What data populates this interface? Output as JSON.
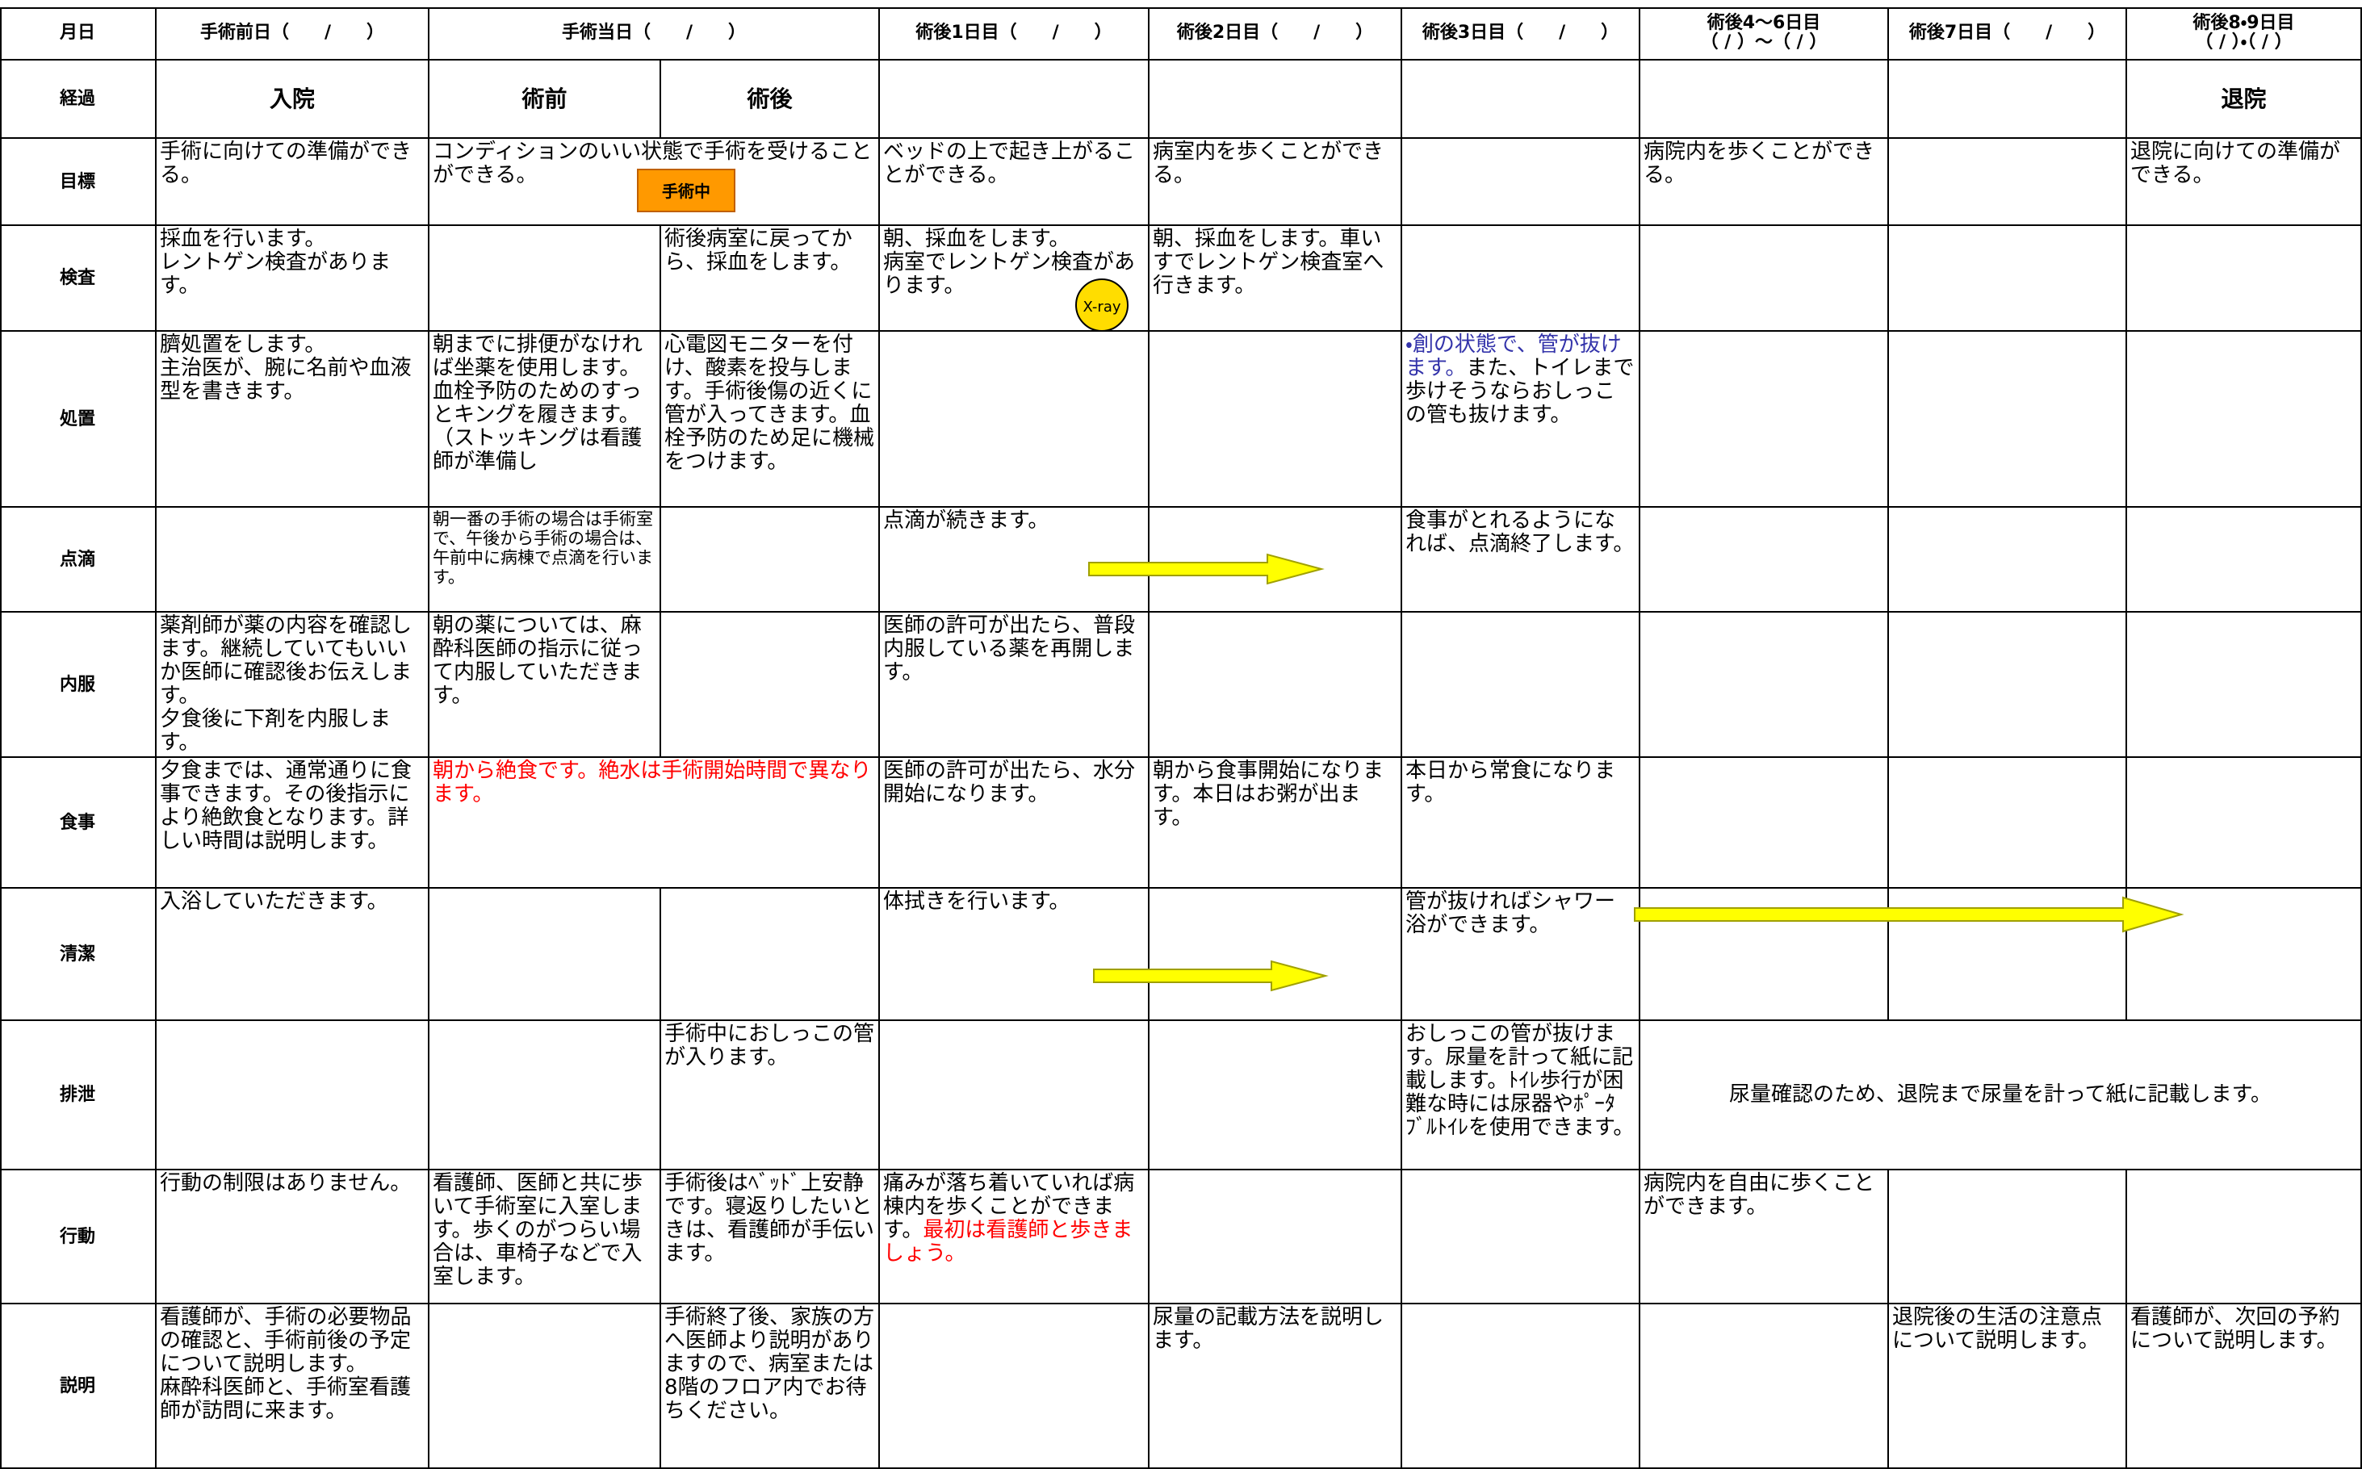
{
  "header": [
    "月日",
    "手術前日（　　/　　）",
    "手術当日（　　/　　）",
    "術後1日目（　　/　　）",
    "術後2日目（　　/　　）",
    "術後3日目（　　/　　）",
    "術後4〜6日目\n（ / ）〜（ / ）",
    "術後7日目（　　/　　）",
    "術後8・9日目\n（ / ）・（ / ）"
  ],
  "rows": [
    {
      "label": "経過",
      "cells": [
        "入院",
        "術前",
        "術後",
        null,
        null,
        null,
        null,
        null,
        "退院"
      ]
    },
    {
      "label": "目標",
      "cells": [
        "手術に向けての準備ができる。",
        "コンディションのいい状態で手術を受けることができる。",
        null,
        "ベッドの上で起き上がることができる。",
        "病室内を歩くことができる。",
        null,
        "病院内を歩くことができる。",
        null,
        "退院に向けての準備ができる。"
      ]
    },
    {
      "label": "検査",
      "cells": [
        "採血を行います。\nレントゲン検査があります。",
        null,
        "術後病室に戻ってから、採血をします。",
        "朝、採血をします。\n病室でレントゲン検査があります。",
        "朝、採血をします。車いすでレントゲン検査室へ行きます。",
        null,
        null,
        null,
        null
      ]
    },
    {
      "label": "処置",
      "cells": [
        "臍処置をします。\n主治医が、腕に名前や血液型を書きます。",
        "朝までに排便がなければ坐薬を使用します。\n血栓予防のためのすっとキングを履きます。（ストッキングは看護師が準備し",
        "心電図モニターを付け、酸素を投与します。手術後傷の近くに管が入ってきます。血栓予防のため足に機械をつけます。",
        null,
        null,
        [
          "・創の状態で、管が抜けます。",
          "また、トイレまで歩けそうならおしっこの管も抜けます。"
        ],
        null,
        null,
        null
      ]
    },
    {
      "label": "点滴",
      "cells": [
        null,
        "朝一番の手術の場合は手術室で、午後から手術の場合は、午前中に病棟で点滴を行います。",
        null,
        "点滴が続きます。",
        null,
        "食事がとれるようになれば、点滴終了します。",
        null,
        null,
        null
      ]
    },
    {
      "label": "内服",
      "cells": [
        "薬剤師が薬の内容を確認します。継続していてもいいか医師に確認後お伝えします。\n夕食後に下剤を内服します。",
        "朝の薬については、麻酔科医師の指示に従って内服していただきます。",
        null,
        "医師の許可が出たら、普段内服している薬を再開します。",
        null,
        null,
        null,
        null,
        null
      ]
    },
    {
      "label": "食事",
      "cells": [
        "夕食までは、通常通りに食事できます。その後指示により絶飲食となります。詳しい時間は説明します。",
        "朝から絶食です。絶水は手術開始時間で異なります。",
        null,
        "医師の許可が出たら、水分開始になります。",
        "朝から食事開始になります。本日はお粥が出ます。",
        "本日から常食になります。",
        null,
        null,
        null
      ]
    },
    {
      "label": "清潔",
      "cells": [
        "入浴していただきます。",
        null,
        null,
        "体拭きを行います。",
        null,
        "管が抜ければシャワー浴ができます。",
        null,
        null,
        null
      ]
    },
    {
      "label": "排泄",
      "cells": [
        null,
        null,
        "手術中におしっこの管が入ります。",
        null,
        null,
        "おしっこの管が抜けます。尿量を計って紙に記載します。ﾄｲﾚ歩行が困難な時には尿器やﾎﾟｰﾀﾌﾞﾙﾄｲﾚを使用できます。",
        "尿量確認のため、退院まで尿量を計って紙に記載します。",
        null,
        null
      ]
    },
    {
      "label": "行動",
      "cells": [
        "行動の制限はありません。",
        "看護師、医師と共に歩いて手術室に入室します。歩くのがつらい場合は、車椅子などで入室します。",
        "手術後はﾍﾞｯﾄﾞ上安静です。寝返りしたいときは、看護師が手伝います。",
        [
          "痛みが落ち着いていれば病棟内を歩くことができます。",
          "最初は看護師と歩きましょう。"
        ],
        null,
        null,
        "病院内を自由に歩くことができます。",
        null,
        null
      ]
    },
    {
      "label": "説明",
      "cells": [
        "看護師が、手術の必要物品の確認と、手術前後の予定について説明します。\n麻酔科医師と、手術室看護師が訪問に来ます。",
        null,
        "手術終了後、家族の方へ医師より説明がありますので、病室または8階のフロア内でお待ちください。",
        null,
        "尿量の記載方法を説明します。",
        null,
        null,
        "退院後の生活の注意点について説明します。",
        "看護師が、次回の予約について説明します。"
      ]
    }
  ],
  "icons": {
    "surgery_sign": "手術中",
    "xray": "X-ray"
  }
}
